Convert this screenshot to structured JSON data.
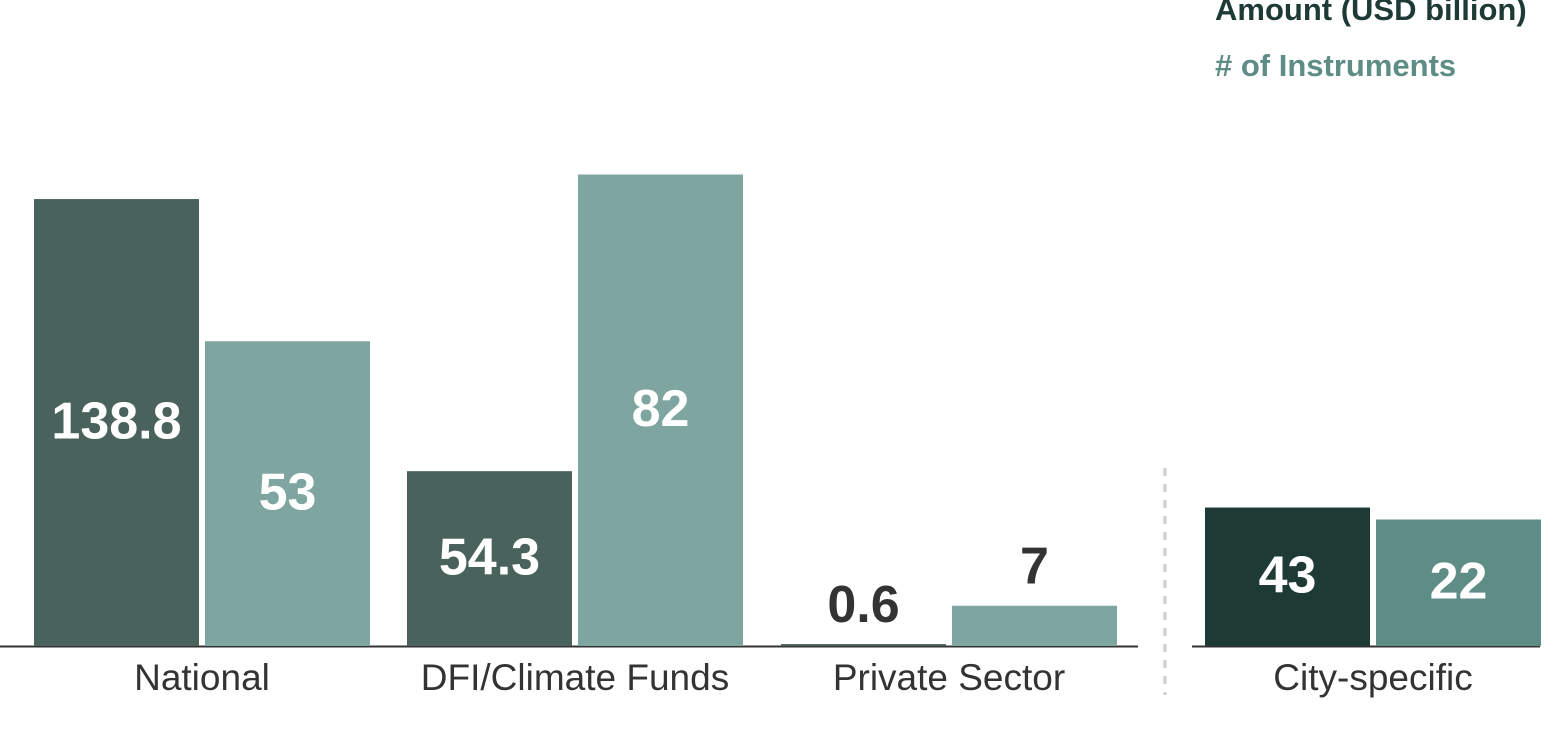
{
  "chart_data": {
    "type": "bar",
    "categories": [
      "National",
      "DFI/Climate Funds",
      "Private Sector",
      "City-specific"
    ],
    "series": [
      {
        "name": "Amount (USD billion)",
        "color": "#1d3a35",
        "bar_colors": [
          "#4a625c",
          "#4a625c",
          "#4a625c",
          "#1d3a35"
        ],
        "values": [
          138.8,
          54.3,
          0.6,
          43
        ]
      },
      {
        "name": "# of Instruments",
        "color": "#5e8d86",
        "axis": "y2",
        "bar_colors": [
          "#7ea59f",
          "#7ea59f",
          "#7ea59f",
          "#5e8d86"
        ],
        "values": [
          53,
          82,
          7,
          22
        ]
      }
    ],
    "ylim": [
      0,
      150
    ],
    "y2lim": [
      0,
      84
    ]
  }
}
